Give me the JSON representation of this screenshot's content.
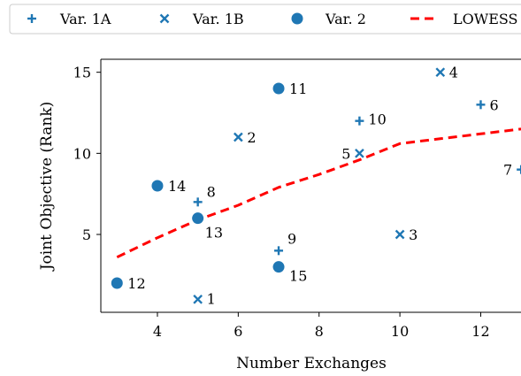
{
  "chart_data": {
    "type": "scatter",
    "title": "",
    "xlabel": "Number Exchanges",
    "ylabel": "Joint Objective (Rank)",
    "xlim": [
      2.6,
      13.5
    ],
    "ylim": [
      0.2,
      15.8
    ],
    "xticks": [
      4,
      6,
      8,
      10,
      12
    ],
    "yticks": [
      5,
      10,
      15
    ],
    "grid": false,
    "legend_position": "top",
    "colors": {
      "points": "#1f77b4",
      "lowess": "#ff0000"
    },
    "legend": [
      {
        "label": "Var. 1A",
        "marker": "plus"
      },
      {
        "label": "Var. 1B",
        "marker": "x"
      },
      {
        "label": "Var. 2",
        "marker": "circle"
      },
      {
        "label": "LOWESS",
        "marker": "dashed-line"
      }
    ],
    "series": [
      {
        "name": "Var. 1A",
        "marker": "plus",
        "points": [
          {
            "id": "6",
            "x": 12,
            "y": 13
          },
          {
            "id": "7",
            "x": 13,
            "y": 9
          },
          {
            "id": "8",
            "x": 5,
            "y": 7
          },
          {
            "id": "9",
            "x": 7,
            "y": 4
          },
          {
            "id": "10",
            "x": 9,
            "y": 12
          }
        ]
      },
      {
        "name": "Var. 1B",
        "marker": "x",
        "points": [
          {
            "id": "1",
            "x": 5,
            "y": 1
          },
          {
            "id": "2",
            "x": 6,
            "y": 11
          },
          {
            "id": "3",
            "x": 10,
            "y": 5
          },
          {
            "id": "4",
            "x": 11,
            "y": 15
          },
          {
            "id": "5",
            "x": 9,
            "y": 10
          }
        ]
      },
      {
        "name": "Var. 2",
        "marker": "circle",
        "points": [
          {
            "id": "11",
            "x": 7,
            "y": 14
          },
          {
            "id": "12",
            "x": 3,
            "y": 2
          },
          {
            "id": "13",
            "x": 5,
            "y": 6
          },
          {
            "id": "14",
            "x": 4,
            "y": 8
          },
          {
            "id": "15",
            "x": 7,
            "y": 3
          }
        ]
      }
    ],
    "lowess": {
      "name": "LOWESS",
      "x": [
        3,
        4,
        5,
        6,
        7,
        8,
        9,
        10,
        11,
        12,
        13
      ],
      "y": [
        3.6,
        4.8,
        5.9,
        6.8,
        7.9,
        8.7,
        9.6,
        10.6,
        10.9,
        11.2,
        11.5
      ]
    }
  }
}
